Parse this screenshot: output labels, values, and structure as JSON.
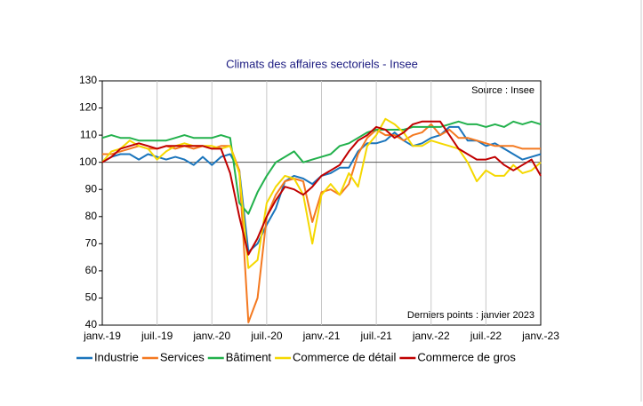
{
  "chart_data": {
    "type": "line",
    "title": "Climats des affaires sectoriels - Insee",
    "annotations": [
      "Source : Insee",
      "Derniers points : janvier 2023"
    ],
    "categories": [
      "janv.-19",
      null,
      null,
      null,
      null,
      null,
      "juil.-19",
      null,
      null,
      null,
      null,
      null,
      "janv.-20",
      null,
      null,
      null,
      null,
      null,
      "juil.-20",
      null,
      null,
      null,
      null,
      null,
      "janv.-21",
      null,
      null,
      null,
      null,
      null,
      "juil.-21",
      null,
      null,
      null,
      null,
      null,
      "janv.-22",
      null,
      null,
      null,
      null,
      null,
      "juil.-22",
      null,
      null,
      null,
      null,
      null,
      "janv.-23"
    ],
    "ylim": [
      40,
      130
    ],
    "yticks": [
      40,
      50,
      60,
      70,
      80,
      90,
      100,
      110,
      120,
      130
    ],
    "reference_line": 100,
    "grid": "x",
    "legend": "bottom",
    "series": [
      {
        "name": "Industrie",
        "color": "#1b75bc",
        "values": [
          100,
          102,
          103,
          103,
          101,
          103,
          102,
          101,
          102,
          101,
          99,
          102,
          99,
          102,
          103,
          97,
          67,
          70,
          77,
          83,
          93,
          95,
          94,
          92,
          95,
          96,
          98,
          98,
          104,
          107,
          107,
          108,
          111,
          108,
          106,
          107,
          109,
          110,
          113,
          113,
          108,
          108,
          106,
          107,
          105,
          103,
          101,
          102,
          103
        ]
      },
      {
        "name": "Services",
        "color": "#f47920",
        "values": [
          103,
          103,
          104,
          105,
          106,
          105,
          105,
          106,
          105,
          106,
          105,
          106,
          105,
          106,
          106,
          97,
          41,
          50,
          80,
          88,
          93,
          94,
          93,
          78,
          89,
          90,
          88,
          92,
          103,
          109,
          112,
          110,
          110,
          108,
          110,
          111,
          114,
          110,
          112,
          109,
          109,
          108,
          107,
          106,
          106,
          106,
          105,
          105,
          105
        ]
      },
      {
        "name": "Bâtiment",
        "color": "#22b14c",
        "values": [
          109,
          110,
          109,
          109,
          108,
          108,
          108,
          108,
          109,
          110,
          109,
          109,
          109,
          110,
          109,
          85,
          81,
          89,
          95,
          100,
          102,
          104,
          100,
          101,
          102,
          103,
          106,
          107,
          109,
          111,
          112,
          112,
          112,
          112,
          113,
          113,
          113,
          113,
          114,
          115,
          114,
          114,
          113,
          114,
          113,
          115,
          114,
          115,
          114
        ]
      },
      {
        "name": "Commerce de détail",
        "color": "#f5d800",
        "values": [
          100,
          104,
          105,
          108,
          106,
          105,
          101,
          104,
          106,
          107,
          106,
          106,
          106,
          105,
          106,
          96,
          61,
          64,
          85,
          91,
          95,
          94,
          88,
          70,
          88,
          92,
          88,
          96,
          91,
          106,
          110,
          116,
          114,
          111,
          106,
          106,
          108,
          107,
          106,
          105,
          100,
          93,
          97,
          95,
          95,
          99,
          96,
          97,
          100
        ]
      },
      {
        "name": "Commerce de gros",
        "color": "#c00000",
        "values": [
          100,
          102,
          105,
          106,
          107,
          106,
          105,
          106,
          106,
          106,
          106,
          106,
          105,
          105,
          96,
          80,
          66,
          72,
          80,
          86,
          91,
          90,
          88,
          91,
          95,
          97,
          99,
          104,
          108,
          110,
          113,
          112,
          109,
          111,
          114,
          115,
          115,
          115,
          110,
          105,
          103,
          101,
          101,
          102,
          99,
          97,
          99,
          101,
          95
        ]
      }
    ]
  }
}
